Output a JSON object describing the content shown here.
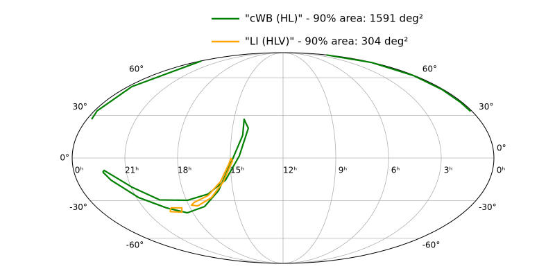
{
  "chart_data": {
    "type": "mollweide",
    "series": [
      {
        "name": "\"cWB (HL)\" - 90% area: 1591 deg²",
        "color": "#008000",
        "x": [
          22.35,
          22.01,
          20.86,
          19.53,
          18.37,
          17.03,
          15.86,
          14.88,
          14.35,
          14.38,
          14.06,
          14.49,
          15.35,
          16.55,
          17.95,
          19.65,
          20.95,
          22.25,
          22.35,
          null,
          23.71,
          23.83,
          23.7,
          23.97,
          null,
          0.02,
          0.05,
          0.08,
          0.1,
          0.1,
          0.1
        ],
        "values": [
          -9.65,
          -15.4,
          -27.8,
          -35.4,
          -39.1,
          -34.4,
          -22.8,
          -1.0,
          15.9,
          27.2,
          20.8,
          1.44,
          -15.4,
          -25.3,
          -29.8,
          -29.5,
          -20.3,
          -8.6,
          -9.65,
          null,
          27.2,
          33.4,
          52.3,
          76.9,
          null,
          85,
          75,
          62,
          50,
          40,
          33
        ]
      },
      {
        "name": "\"LI (HLV)\" - 90% area: 304 deg²",
        "color": "#ffa500",
        "x": [
          14.96,
          15.08,
          15.65,
          16.56,
          17.57,
          17.83,
          17.45,
          16.39,
          15.48,
          14.88,
          14.96,
          null,
          19.26,
          18.54,
          18.71,
          19.45,
          19.26
        ],
        "values": [
          0,
          -4.0,
          -16.4,
          -26.3,
          -31.3,
          -33.4,
          -33.9,
          -27.8,
          -16.4,
          -1.9,
          0,
          null,
          -35.4,
          -35.4,
          -38.6,
          -38.2,
          -35.4
        ]
      }
    ],
    "xticks": [
      {
        "value": 24,
        "label": "0ʰ"
      },
      {
        "value": 21,
        "label": "21ʰ"
      },
      {
        "value": 18,
        "label": "18ʰ"
      },
      {
        "value": 15,
        "label": "15ʰ"
      },
      {
        "value": 12,
        "label": "12ʰ"
      },
      {
        "value": 9,
        "label": "9ʰ"
      },
      {
        "value": 6,
        "label": "6ʰ"
      },
      {
        "value": 3,
        "label": "3ʰ"
      },
      {
        "value": 0,
        "label": "0ʰ"
      }
    ],
    "yticks": [
      {
        "value": 60,
        "label": "60°"
      },
      {
        "value": 30,
        "label": "30°"
      },
      {
        "value": 0,
        "label": "0°"
      },
      {
        "value": -30,
        "label": "-30°"
      },
      {
        "value": -60,
        "label": "-60°"
      }
    ],
    "grid": true
  }
}
